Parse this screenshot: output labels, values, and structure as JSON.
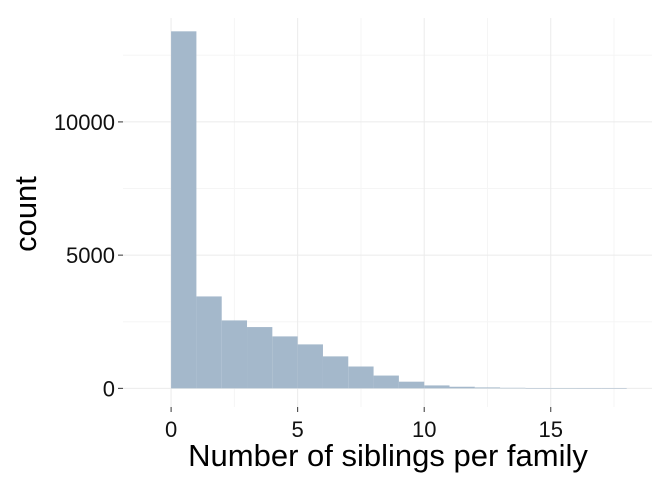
{
  "chart_data": {
    "type": "bar",
    "subtype": "histogram",
    "title": "",
    "xlabel": "Number of siblings per family",
    "ylabel": "count",
    "xlim": [
      -1.9,
      19
    ],
    "ylim": [
      -700,
      13900
    ],
    "x_ticks": [
      {
        "value": 0,
        "label": "0"
      },
      {
        "value": 5,
        "label": "5"
      },
      {
        "value": 10,
        "label": "10"
      },
      {
        "value": 15,
        "label": "15"
      }
    ],
    "y_ticks": [
      {
        "value": 0,
        "label": "0"
      },
      {
        "value": 5000,
        "label": "5000"
      },
      {
        "value": 10000,
        "label": "10000"
      }
    ],
    "bin_width": 1,
    "bins": [
      {
        "x0": 0,
        "x1": 1,
        "count": 13400
      },
      {
        "x0": 1,
        "x1": 2,
        "count": 3450
      },
      {
        "x0": 2,
        "x1": 3,
        "count": 2550
      },
      {
        "x0": 3,
        "x1": 4,
        "count": 2300
      },
      {
        "x0": 4,
        "x1": 5,
        "count": 1950
      },
      {
        "x0": 5,
        "x1": 6,
        "count": 1650
      },
      {
        "x0": 6,
        "x1": 7,
        "count": 1200
      },
      {
        "x0": 7,
        "x1": 8,
        "count": 820
      },
      {
        "x0": 8,
        "x1": 9,
        "count": 480
      },
      {
        "x0": 9,
        "x1": 10,
        "count": 250
      },
      {
        "x0": 10,
        "x1": 11,
        "count": 110
      },
      {
        "x0": 11,
        "x1": 12,
        "count": 60
      },
      {
        "x0": 12,
        "x1": 13,
        "count": 35
      },
      {
        "x0": 13,
        "x1": 14,
        "count": 20
      },
      {
        "x0": 14,
        "x1": 15,
        "count": 10
      },
      {
        "x0": 15,
        "x1": 16,
        "count": 6
      },
      {
        "x0": 16,
        "x1": 17,
        "count": 4
      },
      {
        "x0": 17,
        "x1": 18,
        "count": 2
      }
    ],
    "grid": true,
    "legend": "none",
    "bar_color": "#a4b8cb"
  }
}
